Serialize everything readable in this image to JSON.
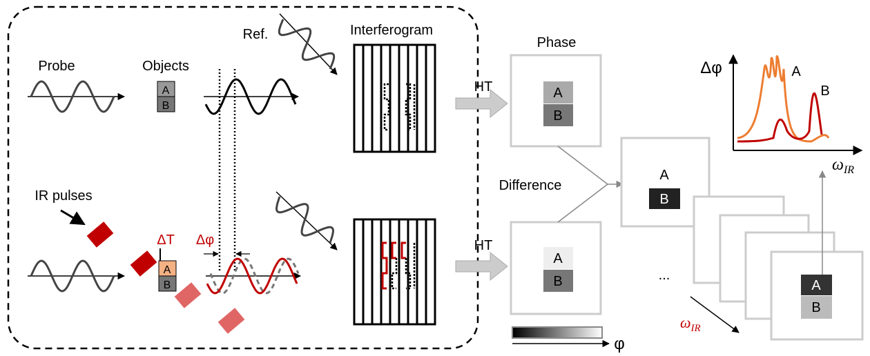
{
  "left_panel": {
    "top_row": {
      "probe": "Probe",
      "objects": "Objects",
      "object_labels": [
        "A",
        "B"
      ],
      "reference": "Ref."
    },
    "bottom_row": {
      "ir_pulses": "IR pulses",
      "delta_t": "ΔT",
      "delta_phi": "Δφ",
      "object_labels": [
        "A",
        "B"
      ]
    },
    "interferogram": "Interferogram"
  },
  "transform": [
    "HT",
    "HT"
  ],
  "phase_images": {
    "title": "Phase",
    "top": [
      "A",
      "B"
    ],
    "bottom": [
      "A",
      "B"
    ],
    "colorbar_label": "φ"
  },
  "difference": {
    "label": "Difference",
    "stack_back": [
      "A",
      "B"
    ],
    "stack_front": [
      "A",
      "B"
    ],
    "ellipsis": "...",
    "axis_label": "ω",
    "axis_sub": "IR"
  },
  "spectrum": {
    "y_label": "Δφ",
    "x_label": "ω",
    "x_sub": "IR",
    "peaks": [
      "A",
      "B"
    ]
  }
}
